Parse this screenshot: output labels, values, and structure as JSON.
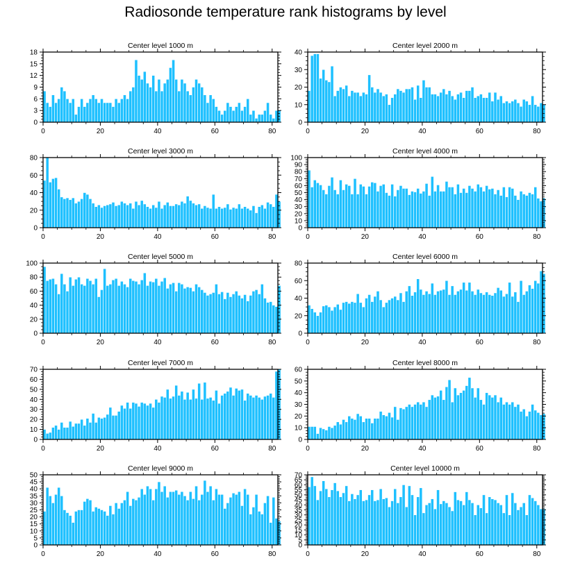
{
  "title": "Radiosonde temperature rank histograms by level",
  "colors": {
    "bar": "#1ec0ff",
    "bar_edge": "#ffffff",
    "axis": "#000000",
    "background": "#ffffff"
  },
  "chart_data": [
    {
      "type": "bar",
      "title": "Center level 1000 m",
      "xlim": [
        0,
        82
      ],
      "ylim": [
        0,
        18
      ],
      "xticks": [
        0,
        20,
        40,
        60,
        80
      ],
      "yticks": [
        0,
        3,
        6,
        9,
        12,
        15,
        18
      ],
      "x_start": 0,
      "values": [
        8,
        5,
        4,
        7,
        5,
        6,
        9,
        8,
        6,
        5,
        6,
        2,
        4,
        6,
        4,
        5,
        6,
        7,
        6,
        5,
        6,
        5,
        5,
        5,
        4,
        6,
        5,
        6,
        7,
        6,
        8,
        9,
        16,
        12,
        11,
        13,
        10,
        9,
        12,
        8,
        11,
        8,
        10,
        11,
        14,
        16,
        11,
        8,
        11,
        10,
        8,
        7,
        9,
        11,
        10,
        9,
        7,
        5,
        7,
        6,
        4,
        3,
        2,
        3,
        5,
        4,
        3,
        4,
        5,
        3,
        4,
        6,
        2,
        3,
        1,
        2,
        2,
        3,
        5,
        2,
        1,
        3,
        3
      ]
    },
    {
      "type": "bar",
      "title": "Center level 2000 m",
      "xlim": [
        0,
        82
      ],
      "ylim": [
        0,
        40
      ],
      "xticks": [
        0,
        20,
        40,
        60,
        80
      ],
      "yticks": [
        0,
        10,
        20,
        30,
        40
      ],
      "x_start": 0,
      "values": [
        18,
        38,
        39,
        39,
        25,
        30,
        24,
        23,
        32,
        15,
        18,
        20,
        19,
        21,
        15,
        18,
        17,
        17,
        15,
        17,
        16,
        27,
        20,
        17,
        19,
        17,
        15,
        16,
        10,
        14,
        16,
        19,
        18,
        17,
        19,
        19,
        20,
        13,
        21,
        14,
        24,
        20,
        20,
        16,
        16,
        15,
        17,
        19,
        16,
        18,
        15,
        13,
        16,
        17,
        14,
        18,
        18,
        20,
        14,
        15,
        16,
        14,
        14,
        17,
        12,
        17,
        13,
        15,
        11,
        12,
        11,
        12,
        13,
        11,
        9,
        13,
        12,
        10,
        15,
        10,
        9,
        11,
        10
      ]
    },
    {
      "type": "bar",
      "title": "Center level 3000 m",
      "xlim": [
        0,
        82
      ],
      "ylim": [
        0,
        80
      ],
      "xticks": [
        0,
        20,
        40,
        60,
        80
      ],
      "yticks": [
        0,
        20,
        40,
        60,
        80
      ],
      "x_start": 0,
      "values": [
        54,
        80,
        52,
        56,
        57,
        44,
        35,
        33,
        34,
        32,
        34,
        28,
        30,
        33,
        40,
        38,
        33,
        28,
        24,
        26,
        23,
        25,
        26,
        27,
        29,
        25,
        26,
        30,
        28,
        26,
        28,
        22,
        30,
        26,
        31,
        27,
        24,
        22,
        26,
        23,
        30,
        22,
        26,
        29,
        25,
        25,
        27,
        26,
        30,
        28,
        36,
        31,
        28,
        26,
        27,
        22,
        25,
        23,
        22,
        38,
        22,
        24,
        22,
        23,
        27,
        21,
        23,
        22,
        27,
        22,
        24,
        22,
        20,
        25,
        17,
        24,
        26,
        22,
        29,
        27,
        24,
        38,
        30
      ]
    },
    {
      "type": "bar",
      "title": "Center level 4000 m",
      "xlim": [
        0,
        82
      ],
      "ylim": [
        0,
        100
      ],
      "xticks": [
        0,
        20,
        40,
        60,
        80
      ],
      "yticks": [
        0,
        10,
        20,
        30,
        40,
        50,
        60,
        70,
        80,
        90,
        100
      ],
      "x_start": 0,
      "values": [
        82,
        58,
        68,
        64,
        61,
        54,
        48,
        60,
        72,
        54,
        48,
        68,
        54,
        62,
        60,
        48,
        70,
        48,
        62,
        59,
        48,
        59,
        65,
        64,
        52,
        60,
        62,
        50,
        46,
        62,
        45,
        54,
        60,
        56,
        56,
        47,
        52,
        51,
        56,
        49,
        52,
        63,
        46,
        73,
        52,
        61,
        52,
        52,
        66,
        58,
        58,
        48,
        62,
        50,
        56,
        50,
        60,
        56,
        52,
        62,
        58,
        52,
        60,
        55,
        56,
        48,
        54,
        46,
        58,
        44,
        58,
        56,
        46,
        40,
        52,
        48,
        46,
        50,
        48,
        58,
        42,
        38,
        42
      ]
    },
    {
      "type": "bar",
      "title": "Center level 5000 m",
      "xlim": [
        0,
        82
      ],
      "ylim": [
        0,
        100
      ],
      "xticks": [
        0,
        20,
        40,
        60,
        80
      ],
      "yticks": [
        0,
        20,
        40,
        60,
        80,
        100
      ],
      "x_start": 0,
      "values": [
        95,
        75,
        77,
        78,
        70,
        56,
        85,
        70,
        60,
        80,
        68,
        77,
        80,
        70,
        68,
        78,
        75,
        70,
        78,
        52,
        62,
        92,
        68,
        70,
        76,
        78,
        68,
        74,
        70,
        66,
        78,
        75,
        74,
        70,
        76,
        86,
        68,
        74,
        73,
        78,
        68,
        74,
        79,
        64,
        70,
        72,
        60,
        72,
        70,
        64,
        66,
        65,
        60,
        70,
        66,
        62,
        58,
        54,
        56,
        58,
        70,
        56,
        59,
        49,
        58,
        52,
        56,
        60,
        54,
        50,
        55,
        46,
        54,
        60,
        62,
        56,
        70,
        50,
        44,
        45,
        40,
        38,
        68
      ]
    },
    {
      "type": "bar",
      "title": "Center level 6000 m",
      "xlim": [
        0,
        82
      ],
      "ylim": [
        0,
        80
      ],
      "xticks": [
        0,
        20,
        40,
        60,
        80
      ],
      "yticks": [
        0,
        20,
        40,
        60,
        80
      ],
      "x_start": 0,
      "values": [
        32,
        28,
        24,
        20,
        24,
        31,
        32,
        30,
        26,
        30,
        33,
        27,
        35,
        36,
        34,
        36,
        35,
        45,
        35,
        30,
        40,
        44,
        36,
        42,
        48,
        38,
        30,
        35,
        38,
        40,
        42,
        38,
        46,
        36,
        48,
        54,
        43,
        47,
        62,
        50,
        44,
        48,
        45,
        57,
        44,
        48,
        49,
        50,
        60,
        44,
        54,
        44,
        48,
        50,
        58,
        49,
        58,
        48,
        44,
        50,
        46,
        44,
        47,
        44,
        43,
        46,
        52,
        49,
        42,
        45,
        58,
        42,
        47,
        36,
        60,
        44,
        48,
        55,
        51,
        60,
        57,
        71,
        68
      ]
    },
    {
      "type": "bar",
      "title": "Center level 7000 m",
      "xlim": [
        0,
        82
      ],
      "ylim": [
        0,
        70
      ],
      "xticks": [
        0,
        20,
        40,
        60,
        80
      ],
      "yticks": [
        0,
        10,
        20,
        30,
        40,
        50,
        60,
        70
      ],
      "x_start": 0,
      "values": [
        10,
        6,
        7,
        12,
        14,
        10,
        17,
        12,
        12,
        18,
        13,
        16,
        16,
        20,
        14,
        21,
        17,
        26,
        17,
        22,
        21,
        22,
        25,
        32,
        24,
        24,
        28,
        34,
        31,
        37,
        31,
        37,
        36,
        33,
        37,
        36,
        34,
        36,
        32,
        40,
        37,
        43,
        42,
        50,
        41,
        43,
        54,
        44,
        48,
        40,
        47,
        40,
        50,
        41,
        56,
        40,
        57,
        41,
        42,
        39,
        49,
        36,
        44,
        46,
        48,
        52,
        44,
        51,
        49,
        50,
        39,
        46,
        44,
        42,
        44,
        42,
        40,
        43,
        44,
        46,
        42,
        68,
        70
      ]
    },
    {
      "type": "bar",
      "title": "Center level 8000 m",
      "xlim": [
        0,
        82
      ],
      "ylim": [
        0,
        60
      ],
      "xticks": [
        0,
        20,
        40,
        60,
        80
      ],
      "yticks": [
        0,
        10,
        20,
        30,
        40,
        50,
        60
      ],
      "x_start": 0,
      "values": [
        11,
        11,
        11,
        5,
        10,
        9,
        8,
        11,
        10,
        12,
        15,
        13,
        17,
        15,
        20,
        18,
        17,
        22,
        20,
        15,
        18,
        18,
        14,
        18,
        18,
        24,
        21,
        20,
        23,
        19,
        28,
        17,
        27,
        26,
        28,
        30,
        28,
        30,
        32,
        30,
        32,
        28,
        34,
        38,
        36,
        37,
        42,
        34,
        45,
        51,
        32,
        44,
        38,
        40,
        42,
        46,
        53,
        44,
        36,
        44,
        34,
        30,
        40,
        38,
        36,
        38,
        32,
        36,
        30,
        32,
        30,
        32,
        28,
        30,
        24,
        26,
        20,
        24,
        30,
        25,
        23,
        21,
        22
      ]
    },
    {
      "type": "bar",
      "title": "Center level 9000 m",
      "xlim": [
        0,
        82
      ],
      "ylim": [
        0,
        50
      ],
      "xticks": [
        0,
        20,
        40,
        60,
        80
      ],
      "yticks": [
        0,
        5,
        10,
        15,
        20,
        25,
        30,
        35,
        40,
        45,
        50
      ],
      "x_start": 0,
      "values": [
        24,
        41,
        35,
        30,
        36,
        41,
        35,
        25,
        23,
        21,
        16,
        24,
        25,
        25,
        31,
        33,
        32,
        24,
        27,
        26,
        25,
        24,
        21,
        28,
        22,
        30,
        26,
        30,
        32,
        38,
        28,
        33,
        32,
        34,
        40,
        36,
        42,
        40,
        32,
        40,
        45,
        38,
        42,
        34,
        38,
        38,
        39,
        36,
        38,
        35,
        32,
        38,
        33,
        42,
        32,
        36,
        46,
        38,
        42,
        32,
        40,
        36,
        36,
        26,
        30,
        34,
        37,
        36,
        38,
        28,
        40,
        36,
        22,
        27,
        36,
        24,
        22,
        30,
        35,
        16,
        34,
        19,
        17
      ]
    },
    {
      "type": "bar",
      "title": "Center level 10000 m",
      "xlim": [
        0,
        82
      ],
      "ylim": [
        0,
        70
      ],
      "xticks": [
        0,
        20,
        40,
        60,
        80
      ],
      "yticks": [
        0,
        5,
        10,
        15,
        20,
        25,
        30,
        35,
        40,
        45,
        50,
        55,
        60,
        65,
        70
      ],
      "x_start": 0,
      "values": [
        58,
        68,
        59,
        45,
        54,
        64,
        56,
        48,
        55,
        62,
        54,
        48,
        52,
        59,
        44,
        51,
        46,
        50,
        55,
        44,
        45,
        50,
        55,
        44,
        45,
        56,
        46,
        47,
        38,
        44,
        56,
        42,
        48,
        60,
        38,
        59,
        50,
        30,
        48,
        57,
        32,
        40,
        42,
        46,
        36,
        55,
        41,
        44,
        42,
        38,
        34,
        53,
        45,
        44,
        40,
        53,
        45,
        42,
        30,
        40,
        37,
        50,
        32,
        48,
        46,
        45,
        42,
        40,
        32,
        50,
        30,
        52,
        42,
        35,
        38,
        42,
        30,
        50,
        47,
        44,
        40,
        36,
        36
      ]
    }
  ]
}
